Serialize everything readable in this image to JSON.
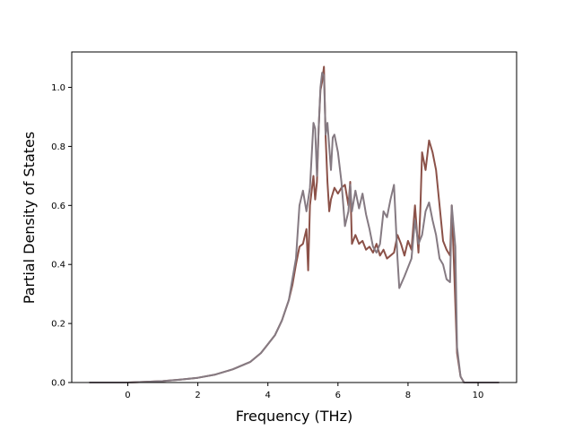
{
  "chart_data": {
    "type": "line",
    "title": "",
    "xlabel": "Frequency (THz)",
    "ylabel": "Partial Density of States",
    "xlim": [
      -1.6,
      11.1
    ],
    "ylim": [
      0.0,
      1.12
    ],
    "xticks": [
      0,
      2,
      4,
      6,
      8,
      10
    ],
    "xtick_labels": [
      "0",
      "2",
      "4",
      "6",
      "8",
      "10"
    ],
    "yticks": [
      0.0,
      0.2,
      0.4,
      0.6,
      0.8,
      1.0
    ],
    "ytick_labels": [
      "0.0",
      "0.2",
      "0.4",
      "0.6",
      "0.8",
      "1.0"
    ],
    "grid": false,
    "legend": "none",
    "series": [
      {
        "color": "#8b5148",
        "points": [
          [
            -1.1,
            0.0
          ],
          [
            0.0,
            0.0
          ],
          [
            0.5,
            0.002
          ],
          [
            1.0,
            0.005
          ],
          [
            1.5,
            0.01
          ],
          [
            2.0,
            0.016
          ],
          [
            2.5,
            0.027
          ],
          [
            3.0,
            0.045
          ],
          [
            3.5,
            0.07
          ],
          [
            3.8,
            0.1
          ],
          [
            4.0,
            0.13
          ],
          [
            4.2,
            0.16
          ],
          [
            4.4,
            0.21
          ],
          [
            4.6,
            0.28
          ],
          [
            4.7,
            0.33
          ],
          [
            4.8,
            0.4
          ],
          [
            4.9,
            0.46
          ],
          [
            5.0,
            0.47
          ],
          [
            5.1,
            0.52
          ],
          [
            5.15,
            0.38
          ],
          [
            5.2,
            0.6
          ],
          [
            5.3,
            0.7
          ],
          [
            5.35,
            0.62
          ],
          [
            5.4,
            0.68
          ],
          [
            5.45,
            0.86
          ],
          [
            5.5,
            0.99
          ],
          [
            5.55,
            1.02
          ],
          [
            5.6,
            1.07
          ],
          [
            5.65,
            0.83
          ],
          [
            5.7,
            0.68
          ],
          [
            5.75,
            0.58
          ],
          [
            5.8,
            0.62
          ],
          [
            5.9,
            0.66
          ],
          [
            6.0,
            0.64
          ],
          [
            6.1,
            0.66
          ],
          [
            6.2,
            0.67
          ],
          [
            6.3,
            0.6
          ],
          [
            6.35,
            0.68
          ],
          [
            6.4,
            0.47
          ],
          [
            6.5,
            0.5
          ],
          [
            6.6,
            0.47
          ],
          [
            6.7,
            0.48
          ],
          [
            6.8,
            0.45
          ],
          [
            6.9,
            0.46
          ],
          [
            7.0,
            0.44
          ],
          [
            7.1,
            0.47
          ],
          [
            7.2,
            0.43
          ],
          [
            7.3,
            0.45
          ],
          [
            7.4,
            0.42
          ],
          [
            7.5,
            0.43
          ],
          [
            7.6,
            0.44
          ],
          [
            7.7,
            0.5
          ],
          [
            7.8,
            0.47
          ],
          [
            7.9,
            0.43
          ],
          [
            8.0,
            0.48
          ],
          [
            8.1,
            0.45
          ],
          [
            8.2,
            0.6
          ],
          [
            8.3,
            0.44
          ],
          [
            8.35,
            0.58
          ],
          [
            8.4,
            0.78
          ],
          [
            8.5,
            0.72
          ],
          [
            8.6,
            0.82
          ],
          [
            8.7,
            0.78
          ],
          [
            8.8,
            0.72
          ],
          [
            8.9,
            0.6
          ],
          [
            9.0,
            0.48
          ],
          [
            9.1,
            0.45
          ],
          [
            9.2,
            0.43
          ],
          [
            9.25,
            0.6
          ],
          [
            9.3,
            0.44
          ],
          [
            9.4,
            0.1
          ],
          [
            9.5,
            0.02
          ],
          [
            9.6,
            0.0
          ],
          [
            10.6,
            0.0
          ]
        ]
      },
      {
        "color": "#857a82",
        "points": [
          [
            -1.1,
            0.0
          ],
          [
            0.0,
            0.0
          ],
          [
            0.5,
            0.002
          ],
          [
            1.0,
            0.005
          ],
          [
            1.5,
            0.01
          ],
          [
            2.0,
            0.016
          ],
          [
            2.5,
            0.027
          ],
          [
            3.0,
            0.045
          ],
          [
            3.5,
            0.07
          ],
          [
            3.8,
            0.1
          ],
          [
            4.0,
            0.13
          ],
          [
            4.2,
            0.16
          ],
          [
            4.4,
            0.21
          ],
          [
            4.6,
            0.28
          ],
          [
            4.7,
            0.35
          ],
          [
            4.8,
            0.42
          ],
          [
            4.9,
            0.6
          ],
          [
            5.0,
            0.65
          ],
          [
            5.1,
            0.58
          ],
          [
            5.2,
            0.66
          ],
          [
            5.3,
            0.88
          ],
          [
            5.35,
            0.86
          ],
          [
            5.4,
            0.7
          ],
          [
            5.45,
            0.86
          ],
          [
            5.5,
            1.0
          ],
          [
            5.55,
            1.05
          ],
          [
            5.6,
            1.04
          ],
          [
            5.65,
            0.84
          ],
          [
            5.7,
            0.88
          ],
          [
            5.8,
            0.72
          ],
          [
            5.85,
            0.83
          ],
          [
            5.9,
            0.84
          ],
          [
            6.0,
            0.78
          ],
          [
            6.1,
            0.68
          ],
          [
            6.2,
            0.53
          ],
          [
            6.3,
            0.58
          ],
          [
            6.35,
            0.67
          ],
          [
            6.4,
            0.58
          ],
          [
            6.5,
            0.65
          ],
          [
            6.6,
            0.59
          ],
          [
            6.7,
            0.64
          ],
          [
            6.8,
            0.57
          ],
          [
            6.9,
            0.52
          ],
          [
            7.0,
            0.46
          ],
          [
            7.1,
            0.44
          ],
          [
            7.2,
            0.47
          ],
          [
            7.3,
            0.58
          ],
          [
            7.4,
            0.56
          ],
          [
            7.5,
            0.62
          ],
          [
            7.6,
            0.67
          ],
          [
            7.7,
            0.42
          ],
          [
            7.75,
            0.32
          ],
          [
            7.9,
            0.36
          ],
          [
            8.0,
            0.39
          ],
          [
            8.1,
            0.42
          ],
          [
            8.2,
            0.55
          ],
          [
            8.3,
            0.47
          ],
          [
            8.4,
            0.5
          ],
          [
            8.5,
            0.58
          ],
          [
            8.6,
            0.61
          ],
          [
            8.7,
            0.55
          ],
          [
            8.8,
            0.5
          ],
          [
            8.9,
            0.42
          ],
          [
            9.0,
            0.4
          ],
          [
            9.1,
            0.35
          ],
          [
            9.2,
            0.34
          ],
          [
            9.25,
            0.6
          ],
          [
            9.35,
            0.46
          ],
          [
            9.4,
            0.12
          ],
          [
            9.5,
            0.02
          ],
          [
            9.6,
            0.0
          ],
          [
            10.6,
            0.0
          ]
        ]
      }
    ]
  }
}
